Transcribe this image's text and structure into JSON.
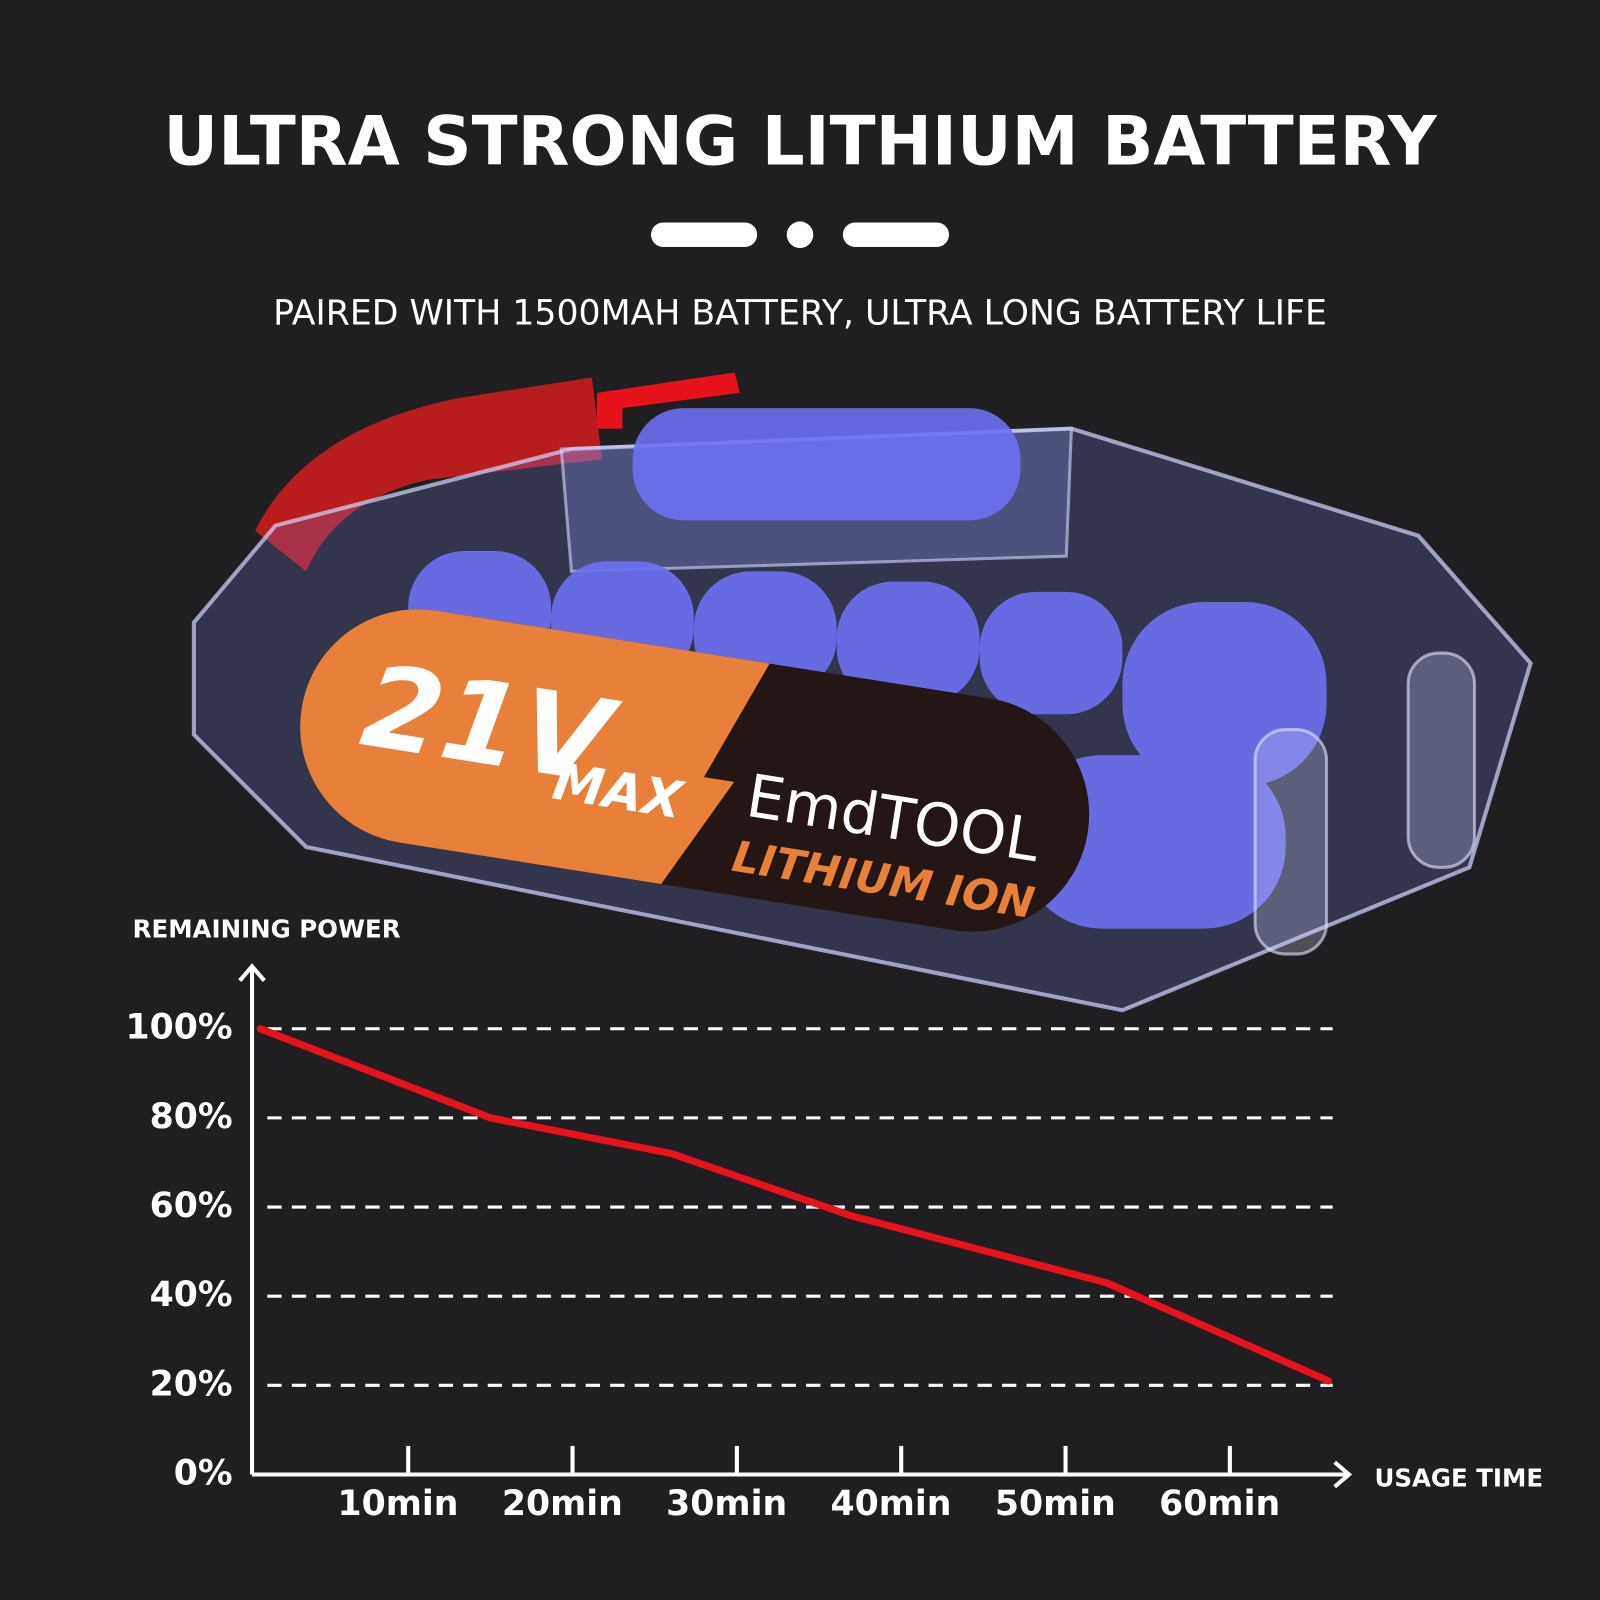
{
  "chart_data": {
    "type": "line",
    "title": "ULTRA STRONG LITHIUM BATTERY",
    "subtitle": "PAIRED WITH 1500MAH BATTERY, ULTRA LONG BATTERY LIFE",
    "y_label": "REMAINING POWER",
    "x_label": "USAGE TIME",
    "x": [
      1,
      15,
      26,
      37,
      52.5,
      66
    ],
    "values": [
      100,
      80,
      72,
      58,
      43,
      21
    ],
    "color": "#e8121a",
    "xlim": [
      0,
      67
    ],
    "ylim": [
      0,
      114
    ],
    "xticks": [
      {
        "value": 10,
        "label": "10min"
      },
      {
        "value": 20,
        "label": "20min"
      },
      {
        "value": 30,
        "label": "30min"
      },
      {
        "value": 40,
        "label": "40min"
      },
      {
        "value": 50,
        "label": "50min"
      },
      {
        "value": 60,
        "label": "60min"
      }
    ],
    "yticks": [
      {
        "value": 0,
        "label": "0%"
      },
      {
        "value": 20,
        "label": "20%"
      },
      {
        "value": 40,
        "label": "40%"
      },
      {
        "value": 60,
        "label": "60%"
      },
      {
        "value": 80,
        "label": "80%"
      },
      {
        "value": 100,
        "label": "100%"
      }
    ],
    "grid": true
  },
  "product_label": {
    "voltage": "21V",
    "max": "MAX",
    "brand": "EmdTOOL",
    "chemistry": "LITHIUM ION"
  }
}
